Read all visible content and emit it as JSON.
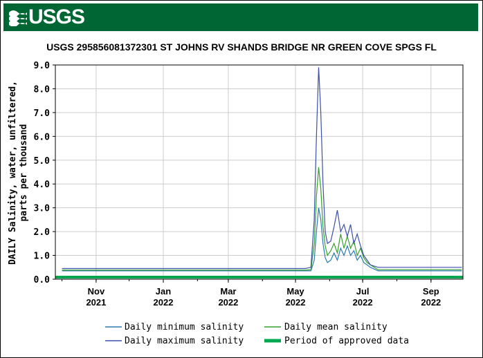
{
  "header": {
    "logo_text": "USGS",
    "brand_color": "#006633"
  },
  "chart_data": {
    "type": "line",
    "title": "USGS 295856081372301 ST JOHNS RV SHANDS BRIDGE NR GREEN COVE SPGS FL",
    "ylabel_line1": "DAILY Salinity, water, unfiltered,",
    "ylabel_line2": "parts per thousand",
    "xlabel": "",
    "ylim": [
      0,
      9
    ],
    "yticks": [
      "0.0",
      "1.0",
      "2.0",
      "3.0",
      "4.0",
      "5.0",
      "6.0",
      "7.0",
      "8.0",
      "9.0"
    ],
    "xlim": [
      "2021-09-25",
      "2022-09-30"
    ],
    "xticks": [
      {
        "date": "2021-11-01",
        "month": "Nov",
        "year": "2021"
      },
      {
        "date": "2022-01-01",
        "month": "Jan",
        "year": "2022"
      },
      {
        "date": "2022-03-01",
        "month": "Mar",
        "year": "2022"
      },
      {
        "date": "2022-05-01",
        "month": "May",
        "year": "2022"
      },
      {
        "date": "2022-07-01",
        "month": "Jul",
        "year": "2022"
      },
      {
        "date": "2022-09-01",
        "month": "Sep",
        "year": "2022"
      }
    ],
    "grid": true,
    "legend_position": "bottom",
    "series": [
      {
        "name": "Daily minimum salinity",
        "color": "#2a7ab0",
        "points": [
          [
            "2021-10-01",
            0.35
          ],
          [
            "2021-10-15",
            0.35
          ],
          [
            "2022-04-15",
            0.35
          ],
          [
            "2022-05-10",
            0.35
          ],
          [
            "2022-05-15",
            0.35
          ],
          [
            "2022-05-18",
            0.8
          ],
          [
            "2022-05-20",
            2.0
          ],
          [
            "2022-05-22",
            3.0
          ],
          [
            "2022-05-24",
            2.5
          ],
          [
            "2022-05-26",
            1.5
          ],
          [
            "2022-05-28",
            0.9
          ],
          [
            "2022-05-30",
            0.7
          ],
          [
            "2022-06-02",
            0.8
          ],
          [
            "2022-06-05",
            1.1
          ],
          [
            "2022-06-08",
            0.8
          ],
          [
            "2022-06-11",
            1.3
          ],
          [
            "2022-06-14",
            1.0
          ],
          [
            "2022-06-17",
            1.4
          ],
          [
            "2022-06-20",
            1.0
          ],
          [
            "2022-06-23",
            1.2
          ],
          [
            "2022-06-26",
            0.8
          ],
          [
            "2022-06-29",
            1.0
          ],
          [
            "2022-07-02",
            0.7
          ],
          [
            "2022-07-05",
            0.6
          ],
          [
            "2022-07-08",
            0.5
          ],
          [
            "2022-07-15",
            0.35
          ],
          [
            "2022-09-29",
            0.35
          ]
        ]
      },
      {
        "name": "Daily mean salinity",
        "color": "#33a02c",
        "points": [
          [
            "2021-10-01",
            0.38
          ],
          [
            "2021-10-15",
            0.38
          ],
          [
            "2022-04-15",
            0.38
          ],
          [
            "2022-05-10",
            0.38
          ],
          [
            "2022-05-15",
            0.4
          ],
          [
            "2022-05-18",
            1.5
          ],
          [
            "2022-05-20",
            3.5
          ],
          [
            "2022-05-22",
            4.7
          ],
          [
            "2022-05-24",
            3.8
          ],
          [
            "2022-05-26",
            2.2
          ],
          [
            "2022-05-28",
            1.4
          ],
          [
            "2022-05-30",
            1.0
          ],
          [
            "2022-06-02",
            1.2
          ],
          [
            "2022-06-05",
            1.5
          ],
          [
            "2022-06-08",
            1.1
          ],
          [
            "2022-06-11",
            1.9
          ],
          [
            "2022-06-14",
            1.3
          ],
          [
            "2022-06-17",
            1.8
          ],
          [
            "2022-06-20",
            1.3
          ],
          [
            "2022-06-23",
            1.6
          ],
          [
            "2022-06-26",
            1.0
          ],
          [
            "2022-06-29",
            1.3
          ],
          [
            "2022-07-02",
            0.9
          ],
          [
            "2022-07-05",
            0.7
          ],
          [
            "2022-07-08",
            0.6
          ],
          [
            "2022-07-15",
            0.4
          ],
          [
            "2022-09-29",
            0.4
          ]
        ]
      },
      {
        "name": "Daily maximum salinity",
        "color": "#3a4fa8",
        "points": [
          [
            "2021-10-01",
            0.45
          ],
          [
            "2021-10-15",
            0.45
          ],
          [
            "2022-04-15",
            0.45
          ],
          [
            "2022-05-10",
            0.45
          ],
          [
            "2022-05-15",
            0.5
          ],
          [
            "2022-05-18",
            2.5
          ],
          [
            "2022-05-20",
            6.0
          ],
          [
            "2022-05-22",
            8.9
          ],
          [
            "2022-05-24",
            7.0
          ],
          [
            "2022-05-26",
            4.0
          ],
          [
            "2022-05-28",
            2.0
          ],
          [
            "2022-05-30",
            1.5
          ],
          [
            "2022-06-02",
            1.6
          ],
          [
            "2022-06-05",
            2.2
          ],
          [
            "2022-06-08",
            2.9
          ],
          [
            "2022-06-11",
            2.0
          ],
          [
            "2022-06-14",
            2.3
          ],
          [
            "2022-06-17",
            1.8
          ],
          [
            "2022-06-20",
            2.3
          ],
          [
            "2022-06-23",
            1.5
          ],
          [
            "2022-06-26",
            1.9
          ],
          [
            "2022-06-29",
            1.4
          ],
          [
            "2022-07-02",
            1.0
          ],
          [
            "2022-07-05",
            0.8
          ],
          [
            "2022-07-08",
            0.6
          ],
          [
            "2022-07-15",
            0.5
          ],
          [
            "2022-09-29",
            0.5
          ]
        ]
      }
    ],
    "approved_period": {
      "name": "Period of approved data",
      "color": "#00a74f",
      "start": "2021-09-25",
      "end": "2022-09-30"
    }
  }
}
